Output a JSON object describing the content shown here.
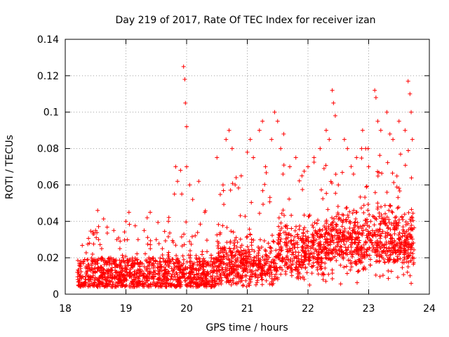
{
  "chart_data": {
    "type": "scatter",
    "title": "Day 219 of 2017, Rate Of TEC Index for receiver izan",
    "xlabel": "GPS time / hours",
    "ylabel": "ROTI / TECUs",
    "xlim": [
      18,
      24
    ],
    "ylim": [
      0,
      0.14
    ],
    "x_ticks": [
      18,
      19,
      20,
      21,
      22,
      23,
      24
    ],
    "x_tick_labels": [
      "18",
      "19",
      "20",
      "21",
      "22",
      "23",
      "24"
    ],
    "y_ticks": [
      0,
      0.02,
      0.04,
      0.06,
      0.08,
      0.1,
      0.12,
      0.14
    ],
    "y_tick_labels": [
      "0",
      "0.02",
      "0.04",
      "0.06",
      "0.08",
      "0.1",
      "0.12",
      "0.14"
    ],
    "grid": true,
    "marker": "+",
    "color": "#ff0000",
    "time_range": [
      18.2,
      23.75
    ],
    "series": [
      {
        "name": "ROTI",
        "x": [
          18.2,
          18.3,
          18.4,
          18.45,
          18.5,
          18.55,
          18.6,
          18.75,
          18.8,
          18.85,
          18.9,
          18.95,
          19.0,
          19.05,
          19.2,
          19.3,
          19.35,
          19.4,
          19.5,
          19.6,
          19.7,
          19.8,
          19.82,
          19.85,
          19.9,
          19.92,
          19.95,
          19.97,
          19.98,
          20.0,
          20.0,
          20.05,
          20.1,
          20.2,
          20.3,
          20.5,
          20.6,
          20.65,
          20.7,
          20.75,
          20.8,
          20.9,
          21.0,
          21.05,
          21.1,
          21.2,
          21.25,
          21.3,
          21.4,
          21.45,
          21.5,
          21.55,
          21.6,
          21.7,
          21.8,
          21.9,
          22.0,
          22.1,
          22.2,
          22.3,
          22.35,
          22.4,
          22.42,
          22.45,
          22.5,
          22.6,
          22.65,
          22.8,
          22.9,
          23.0,
          23.1,
          23.12,
          23.15,
          23.2,
          23.3,
          23.35,
          23.4,
          23.5,
          23.6,
          23.65,
          23.68,
          23.7,
          23.72
        ],
        "y": [
          0.012,
          0.018,
          0.028,
          0.022,
          0.035,
          0.03,
          0.025,
          0.02,
          0.035,
          0.03,
          0.025,
          0.02,
          0.04,
          0.045,
          0.03,
          0.035,
          0.042,
          0.045,
          0.03,
          0.025,
          0.04,
          0.055,
          0.07,
          0.062,
          0.068,
          0.055,
          0.125,
          0.118,
          0.105,
          0.092,
          0.07,
          0.06,
          0.052,
          0.062,
          0.045,
          0.075,
          0.06,
          0.085,
          0.09,
          0.08,
          0.06,
          0.065,
          0.078,
          0.085,
          0.075,
          0.09,
          0.095,
          0.07,
          0.085,
          0.1,
          0.095,
          0.08,
          0.088,
          0.07,
          0.075,
          0.065,
          0.07,
          0.075,
          0.08,
          0.09,
          0.085,
          0.112,
          0.105,
          0.098,
          0.06,
          0.085,
          0.08,
          0.075,
          0.09,
          0.07,
          0.112,
          0.108,
          0.095,
          0.09,
          0.1,
          0.088,
          0.085,
          0.095,
          0.09,
          0.117,
          0.11,
          0.1,
          0.085
        ]
      }
    ]
  }
}
